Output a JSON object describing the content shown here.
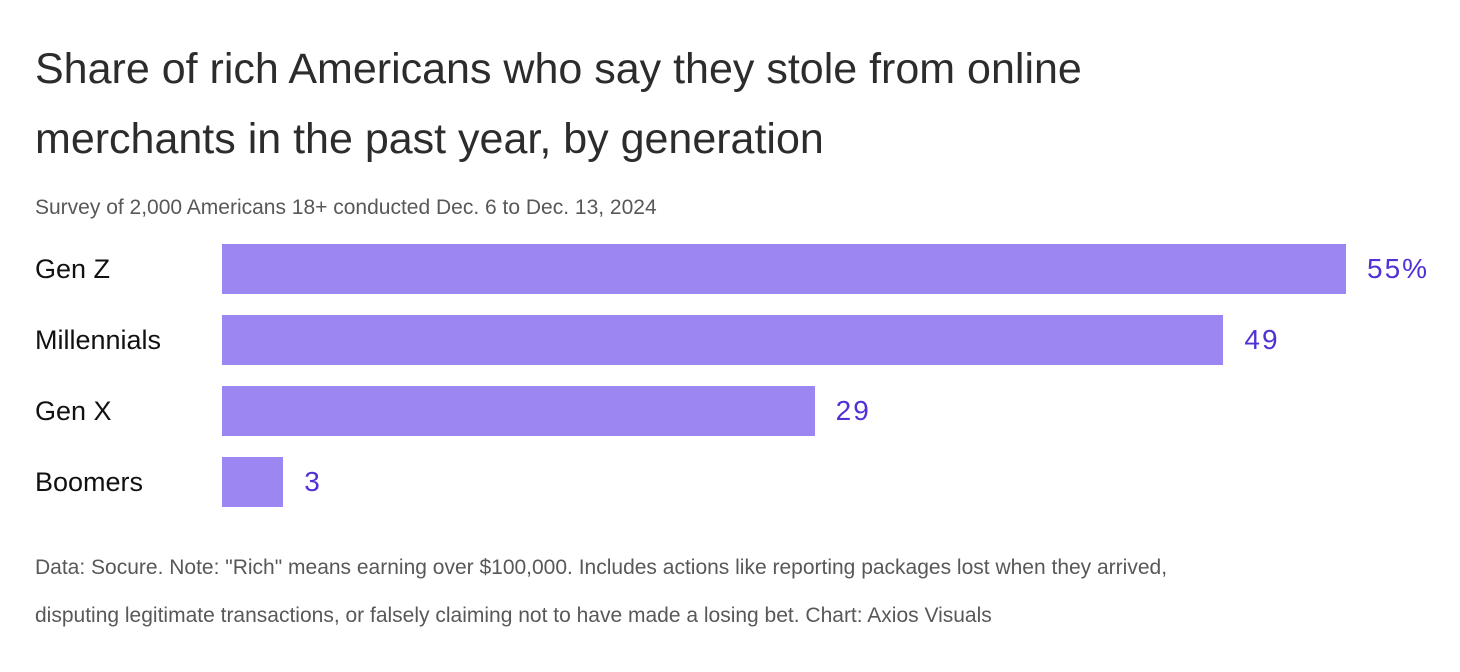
{
  "title": {
    "line1": "Share of rich Americans who say they stole from online",
    "line2": "merchants in the past year, by generation"
  },
  "subtitle": "Survey of 2,000 Americans 18+ conducted Dec. 6 to Dec. 13, 2024",
  "footer": {
    "line1": "Data: Socure. Note: \"Rich\" means earning over $100,000. Includes actions like reporting packages lost when they arrived,",
    "line2": "disputing legitimate transactions, or falsely claiming not to have made a losing bet. Chart: Axios Visuals"
  },
  "colors": {
    "bar": "#9c87f2",
    "value_label": "#5230d6",
    "title": "#2c2c2e",
    "subtitle": "#58585b",
    "category_label": "#111111",
    "background": "#ffffff"
  },
  "chart_data": {
    "type": "bar",
    "orientation": "horizontal",
    "title": "Share of rich Americans who say they stole from online merchants in the past year, by generation",
    "subtitle": "Survey of 2,000 Americans 18+ conducted Dec. 6 to Dec. 13, 2024",
    "categories": [
      "Gen Z",
      "Millennials",
      "Gen X",
      "Boomers"
    ],
    "values": [
      55,
      49,
      29,
      3
    ],
    "value_labels": [
      "55%",
      "49",
      "29",
      "3"
    ],
    "unit": "percent",
    "xlim": [
      0,
      55
    ],
    "grid": false,
    "legend": false,
    "source": "Data: Socure",
    "note": "\"Rich\" means earning over $100,000. Includes actions like reporting packages lost when they arrived, disputing legitimate transactions, or falsely claiming not to have made a losing bet.",
    "credit": "Chart: Axios Visuals"
  }
}
